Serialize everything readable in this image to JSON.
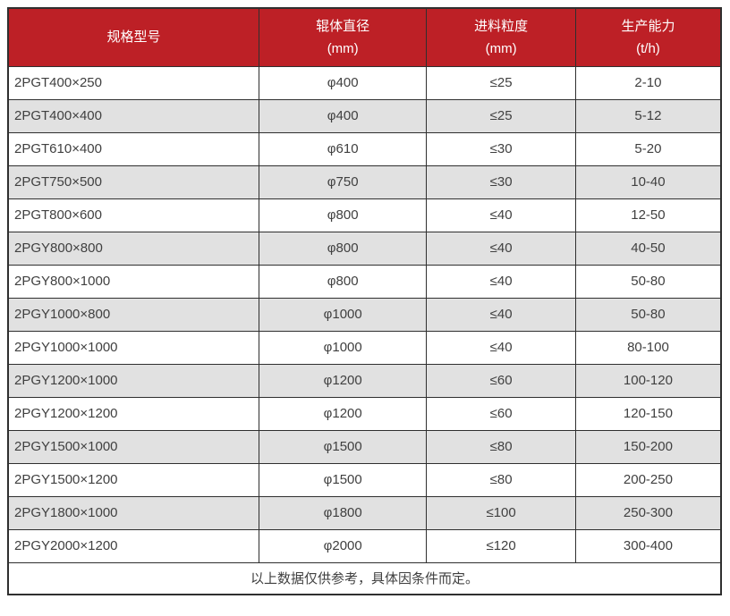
{
  "colors": {
    "header_bg": "#bd2026",
    "header_text": "#ffffff",
    "row_bg": "#ffffff",
    "row_alt_bg": "#e1e1e1",
    "border": "#2f2f2f",
    "text": "#404040",
    "page_bg": "#ffffff"
  },
  "table": {
    "headers": [
      {
        "label": "规格型号",
        "unit": ""
      },
      {
        "label": "辊体直径",
        "unit": "(mm)"
      },
      {
        "label": "进料粒度",
        "unit": "(mm)"
      },
      {
        "label": "生产能力",
        "unit": "(t/h)"
      }
    ],
    "column_widths_pct": [
      35.2,
      23.5,
      20.9,
      20.4
    ],
    "rows": [
      [
        "2PGT400×250",
        "φ400",
        "≤25",
        "2-10"
      ],
      [
        "2PGT400×400",
        "φ400",
        "≤25",
        "5-12"
      ],
      [
        "2PGT610×400",
        "φ610",
        "≤30",
        "5-20"
      ],
      [
        "2PGT750×500",
        "φ750",
        "≤30",
        "10-40"
      ],
      [
        "2PGT800×600",
        "φ800",
        "≤40",
        "12-50"
      ],
      [
        "2PGY800×800",
        "φ800",
        "≤40",
        "40-50"
      ],
      [
        "2PGY800×1000",
        "φ800",
        "≤40",
        "50-80"
      ],
      [
        "2PGY1000×800",
        "φ1000",
        "≤40",
        "50-80"
      ],
      [
        "2PGY1000×1000",
        "φ1000",
        "≤40",
        "80-100"
      ],
      [
        "2PGY1200×1000",
        "φ1200",
        "≤60",
        "100-120"
      ],
      [
        "2PGY1200×1200",
        "φ1200",
        "≤60",
        "120-150"
      ],
      [
        "2PGY1500×1000",
        "φ1500",
        "≤80",
        "150-200"
      ],
      [
        "2PGY1500×1200",
        "φ1500",
        "≤80",
        "200-250"
      ],
      [
        "2PGY1800×1000",
        "φ1800",
        "≤100",
        "250-300"
      ],
      [
        "2PGY2000×1200",
        "φ2000",
        "≤120",
        "300-400"
      ]
    ],
    "footer_note": "以上数据仅供参考，具体因条件而定。"
  }
}
